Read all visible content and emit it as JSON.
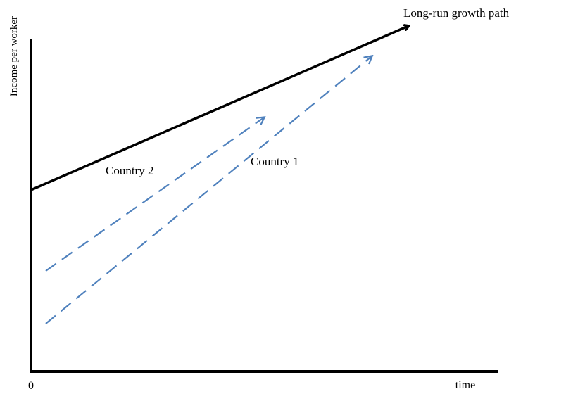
{
  "axes": {
    "y_label": "Income per worker",
    "x_label": "time",
    "origin": "0"
  },
  "paths": [
    {
      "label": "Long-run growth path"
    },
    {
      "label": "Country 2"
    },
    {
      "label": "Country 1"
    }
  ]
}
